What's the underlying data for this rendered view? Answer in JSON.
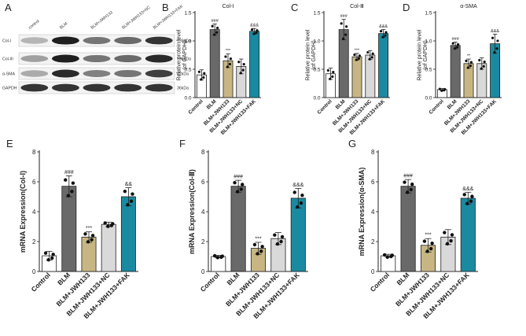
{
  "figure": {
    "panel_letters": [
      "A",
      "B",
      "C",
      "D",
      "E",
      "F",
      "G"
    ],
    "groups": [
      "Control",
      "BLM",
      "BLM+JWH133",
      "BLM+JWH133+NC",
      "BLM+JWH133+FAK"
    ],
    "bar_colors": [
      "#ffffff",
      "#696969",
      "#c7b683",
      "#d9d9d9",
      "#1a8aa0"
    ],
    "axis_color": "#222222"
  },
  "western_blot": {
    "lane_labels": [
      "control",
      "BLM",
      "BLM+JWH133",
      "BLM+JWH133+NC",
      "BLM+JWH133+FAK"
    ],
    "proteins": [
      "Col-I",
      "Col-III",
      "α-SMA",
      "GAPDH"
    ],
    "sizes": [
      "139kDa",
      "138kDa",
      "42kDa",
      "36kDa"
    ],
    "band_intensity": [
      [
        0.25,
        0.95,
        0.55,
        0.6,
        0.85
      ],
      [
        0.35,
        0.95,
        0.55,
        0.6,
        0.9
      ],
      [
        0.3,
        0.9,
        0.5,
        0.55,
        0.8
      ],
      [
        0.85,
        0.85,
        0.85,
        0.85,
        0.85
      ]
    ]
  },
  "chart_data": [
    {
      "id": "B",
      "type": "bar",
      "title": "Col-I",
      "ylabel": "Relative protein level\n(of GAPDH)",
      "categories": [
        "Control",
        "BLM",
        "BLM+JWH133",
        "BLM+JWH133+NC",
        "BLM+JWH133+FAK"
      ],
      "values": [
        0.4,
        1.2,
        0.65,
        0.55,
        1.17
      ],
      "errors": [
        0.09,
        0.1,
        0.12,
        0.13,
        0.05
      ],
      "annotations": [
        "",
        "###",
        "***",
        "",
        "&&&"
      ],
      "ylim": [
        0,
        1.5
      ],
      "yticks": [
        0,
        0.5,
        1.0,
        1.5
      ],
      "ytick_labels": [
        "0.0",
        "0.5",
        "1.0",
        "1.5"
      ]
    },
    {
      "id": "C",
      "type": "bar",
      "title": "Col-Ⅲ",
      "ylabel": "Relative protein level\n(of GAPDH)",
      "categories": [
        "Control",
        "BLM",
        "BLM+JWH133",
        "BLM+JWH133+NC",
        "BLM+JWH133+FAK"
      ],
      "values": [
        0.42,
        1.2,
        0.72,
        0.75,
        1.13
      ],
      "errors": [
        0.1,
        0.18,
        0.06,
        0.08,
        0.07
      ],
      "annotations": [
        "",
        "###",
        "***",
        "",
        "&&&"
      ],
      "ylim": [
        0,
        1.5
      ],
      "yticks": [
        0,
        0.5,
        1.0,
        1.5
      ],
      "ytick_labels": [
        "0.0",
        "0.5",
        "1.0",
        "1.5"
      ]
    },
    {
      "id": "D",
      "type": "bar",
      "title": "α-SMA",
      "ylabel": "Relative protein level\n(of GAPDH)",
      "categories": [
        "Control",
        "BLM",
        "BLM+JWH133",
        "BLM+JWH133+NC",
        "BLM+JWH133+FAK"
      ],
      "values": [
        0.14,
        0.92,
        0.6,
        0.6,
        0.95
      ],
      "errors": [
        0.02,
        0.06,
        0.08,
        0.1,
        0.17
      ],
      "annotations": [
        "",
        "###",
        "**",
        "",
        "&&&"
      ],
      "ylim": [
        0,
        1.5
      ],
      "yticks": [
        0,
        0.5,
        1.0,
        1.5
      ],
      "ytick_labels": [
        "0.0",
        "0.5",
        "1.0",
        "1.5"
      ]
    },
    {
      "id": "E",
      "type": "bar",
      "title": "",
      "ylabel": "mRNA Expression(Col-Ⅰ)",
      "categories": [
        "Control",
        "BLM",
        "BLM+JWH133",
        "BLM+JWH133+NC",
        "BLM+JWH133+FAK"
      ],
      "values": [
        1.05,
        5.7,
        2.3,
        3.15,
        5.0
      ],
      "errors": [
        0.3,
        0.7,
        0.35,
        0.15,
        0.6
      ],
      "annotations": [
        "",
        "###",
        "***",
        "",
        "&&"
      ],
      "ylim": [
        0,
        8
      ],
      "yticks": [
        0,
        2,
        4,
        6,
        8
      ],
      "ytick_labels": [
        "0",
        "2",
        "4",
        "6",
        "8"
      ]
    },
    {
      "id": "F",
      "type": "bar",
      "title": "",
      "ylabel": "mRNA Expression(Col-Ⅲ)",
      "categories": [
        "Control",
        "BLM",
        "BLM+JWH133",
        "BLM+JWH133+NC",
        "BLM+JWH133+FAK"
      ],
      "values": [
        1.0,
        5.7,
        1.55,
        2.2,
        4.9
      ],
      "errors": [
        0.08,
        0.4,
        0.4,
        0.4,
        0.65
      ],
      "annotations": [
        "",
        "###",
        "***",
        "",
        "&&&"
      ],
      "ylim": [
        0,
        8
      ],
      "yticks": [
        0,
        2,
        4,
        6,
        8
      ],
      "ytick_labels": [
        "0",
        "2",
        "4",
        "6",
        "8"
      ]
    },
    {
      "id": "G",
      "type": "bar",
      "title": "",
      "ylabel": "mRNA Expression(α-SMA)",
      "categories": [
        "Control",
        "BLM",
        "BLM+JWH133",
        "BLM+JWH133+NC",
        "BLM+JWH133+FAK"
      ],
      "values": [
        1.05,
        5.7,
        1.75,
        2.3,
        4.9
      ],
      "errors": [
        0.1,
        0.45,
        0.45,
        0.5,
        0.4
      ],
      "annotations": [
        "",
        "###",
        "***",
        "",
        "&&&"
      ],
      "ylim": [
        0,
        8
      ],
      "yticks": [
        0,
        2,
        4,
        6,
        8
      ],
      "ytick_labels": [
        "0",
        "2",
        "4",
        "6",
        "8"
      ]
    }
  ]
}
